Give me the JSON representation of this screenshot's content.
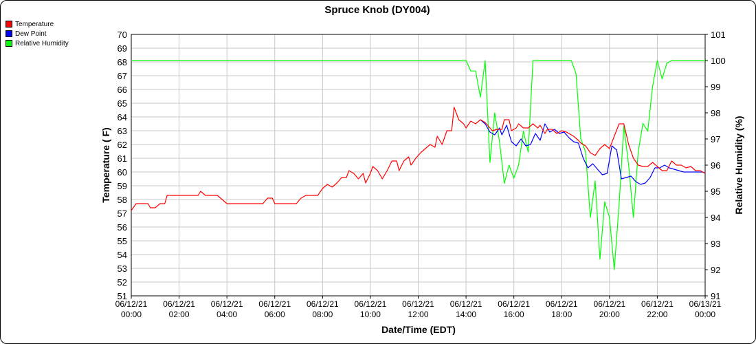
{
  "chart_data": {
    "type": "line",
    "title": "Spruce Knob (DY004)",
    "xlabel": "Date/Time (EDT)",
    "ylabel_left": "Temperature ( F)",
    "ylabel_right": "Relative Humidity (%)",
    "ylim_left": [
      51,
      70
    ],
    "ylim_right": [
      91,
      101
    ],
    "xlim_hours": [
      0,
      24
    ],
    "x_ticks": [
      {
        "h": 0,
        "date": "06/12/21",
        "time": "00:00"
      },
      {
        "h": 2,
        "date": "06/12/21",
        "time": "02:00"
      },
      {
        "h": 4,
        "date": "06/12/21",
        "time": "04:00"
      },
      {
        "h": 6,
        "date": "06/12/21",
        "time": "06:00"
      },
      {
        "h": 8,
        "date": "06/12/21",
        "time": "08:00"
      },
      {
        "h": 10,
        "date": "06/12/21",
        "time": "10:00"
      },
      {
        "h": 12,
        "date": "06/12/21",
        "time": "12:00"
      },
      {
        "h": 14,
        "date": "06/12/21",
        "time": "14:00"
      },
      {
        "h": 16,
        "date": "06/12/21",
        "time": "16:00"
      },
      {
        "h": 18,
        "date": "06/12/21",
        "time": "18:00"
      },
      {
        "h": 20,
        "date": "06/12/21",
        "time": "20:00"
      },
      {
        "h": 22,
        "date": "06/12/21",
        "time": "22:00"
      },
      {
        "h": 24,
        "date": "06/13/21",
        "time": "00:00"
      }
    ],
    "y_ticks_left": [
      51,
      52,
      53,
      54,
      55,
      56,
      57,
      58,
      59,
      60,
      61,
      62,
      63,
      64,
      65,
      66,
      67,
      68,
      69,
      70
    ],
    "y_ticks_right": [
      91,
      92,
      93,
      94,
      95,
      96,
      97,
      98,
      99,
      100,
      101
    ],
    "grid": true,
    "legend_position": "top-left",
    "series": [
      {
        "name": "Temperature",
        "color": "#ff0000",
        "axis": "left",
        "points": [
          [
            0,
            57.2
          ],
          [
            0.2,
            57.7
          ],
          [
            0.5,
            57.7
          ],
          [
            0.7,
            57.7
          ],
          [
            0.8,
            57.4
          ],
          [
            1.0,
            57.4
          ],
          [
            1.2,
            57.7
          ],
          [
            1.4,
            57.7
          ],
          [
            1.5,
            58.3
          ],
          [
            2.0,
            58.3
          ],
          [
            2.5,
            58.3
          ],
          [
            2.8,
            58.3
          ],
          [
            2.9,
            58.6
          ],
          [
            3.1,
            58.3
          ],
          [
            3.5,
            58.3
          ],
          [
            3.6,
            58.3
          ],
          [
            3.8,
            58.0
          ],
          [
            4.0,
            57.7
          ],
          [
            5.0,
            57.7
          ],
          [
            5.5,
            57.7
          ],
          [
            5.7,
            58.1
          ],
          [
            5.9,
            58.1
          ],
          [
            6.0,
            57.7
          ],
          [
            6.5,
            57.7
          ],
          [
            6.9,
            57.7
          ],
          [
            7.1,
            58.1
          ],
          [
            7.3,
            58.3
          ],
          [
            7.8,
            58.3
          ],
          [
            8.0,
            58.8
          ],
          [
            8.2,
            59.1
          ],
          [
            8.4,
            58.9
          ],
          [
            8.6,
            59.2
          ],
          [
            8.8,
            59.6
          ],
          [
            9.0,
            59.6
          ],
          [
            9.1,
            60.1
          ],
          [
            9.3,
            59.9
          ],
          [
            9.5,
            59.5
          ],
          [
            9.7,
            59.9
          ],
          [
            9.8,
            59.2
          ],
          [
            10.0,
            59.9
          ],
          [
            10.1,
            60.4
          ],
          [
            10.3,
            60.1
          ],
          [
            10.5,
            59.5
          ],
          [
            10.7,
            60.1
          ],
          [
            10.9,
            60.8
          ],
          [
            11.1,
            60.8
          ],
          [
            11.2,
            60.1
          ],
          [
            11.4,
            60.8
          ],
          [
            11.6,
            61.1
          ],
          [
            11.7,
            60.5
          ],
          [
            11.9,
            61.0
          ],
          [
            12.1,
            61.4
          ],
          [
            12.3,
            61.7
          ],
          [
            12.5,
            62.0
          ],
          [
            12.7,
            61.8
          ],
          [
            12.8,
            62.6
          ],
          [
            13.0,
            62.0
          ],
          [
            13.2,
            63.0
          ],
          [
            13.4,
            63.0
          ],
          [
            13.5,
            64.7
          ],
          [
            13.7,
            63.8
          ],
          [
            13.9,
            63.5
          ],
          [
            14.0,
            63.2
          ],
          [
            14.2,
            63.7
          ],
          [
            14.4,
            63.5
          ],
          [
            14.6,
            63.8
          ],
          [
            14.8,
            63.6
          ],
          [
            14.9,
            63.4
          ],
          [
            15.1,
            63.0
          ],
          [
            15.3,
            63.1
          ],
          [
            15.5,
            63.1
          ],
          [
            15.6,
            63.8
          ],
          [
            15.8,
            63.8
          ],
          [
            15.9,
            63.0
          ],
          [
            16.1,
            63.2
          ],
          [
            16.2,
            63.5
          ],
          [
            16.4,
            63.2
          ],
          [
            16.6,
            63.2
          ],
          [
            16.8,
            63.5
          ],
          [
            17.0,
            63.2
          ],
          [
            17.1,
            63.4
          ],
          [
            17.3,
            62.8
          ],
          [
            17.4,
            63.1
          ],
          [
            17.6,
            63.1
          ],
          [
            17.8,
            62.8
          ],
          [
            18.0,
            63.0
          ],
          [
            18.2,
            62.9
          ],
          [
            18.3,
            62.8
          ],
          [
            18.5,
            62.6
          ],
          [
            18.7,
            62.3
          ],
          [
            18.8,
            62.1
          ],
          [
            19.0,
            61.9
          ],
          [
            19.2,
            61.4
          ],
          [
            19.4,
            61.2
          ],
          [
            19.6,
            61.7
          ],
          [
            19.8,
            62.0
          ],
          [
            20.0,
            61.7
          ],
          [
            20.2,
            62.6
          ],
          [
            20.4,
            63.5
          ],
          [
            20.6,
            63.5
          ],
          [
            20.8,
            62.0
          ],
          [
            21.0,
            61.0
          ],
          [
            21.2,
            60.5
          ],
          [
            21.4,
            60.4
          ],
          [
            21.6,
            60.4
          ],
          [
            21.8,
            60.7
          ],
          [
            22.0,
            60.4
          ],
          [
            22.2,
            60.1
          ],
          [
            22.4,
            60.1
          ],
          [
            22.6,
            60.8
          ],
          [
            22.8,
            60.5
          ],
          [
            23.0,
            60.5
          ],
          [
            23.2,
            60.3
          ],
          [
            23.4,
            60.4
          ],
          [
            23.6,
            60.1
          ],
          [
            23.8,
            60.1
          ],
          [
            24.0,
            59.9
          ]
        ]
      },
      {
        "name": "Dew Point",
        "color": "#0000ff",
        "axis": "left",
        "points": [
          [
            14.6,
            63.8
          ],
          [
            14.8,
            63.5
          ],
          [
            15.0,
            62.9
          ],
          [
            15.2,
            62.7
          ],
          [
            15.4,
            63.2
          ],
          [
            15.5,
            62.7
          ],
          [
            15.7,
            63.4
          ],
          [
            15.9,
            62.2
          ],
          [
            16.1,
            61.9
          ],
          [
            16.3,
            62.4
          ],
          [
            16.5,
            61.9
          ],
          [
            16.7,
            62.0
          ],
          [
            16.9,
            62.8
          ],
          [
            17.1,
            62.3
          ],
          [
            17.3,
            63.5
          ],
          [
            17.5,
            62.9
          ],
          [
            17.7,
            63.1
          ],
          [
            17.9,
            62.8
          ],
          [
            18.1,
            62.9
          ],
          [
            18.3,
            62.5
          ],
          [
            18.5,
            62.2
          ],
          [
            18.7,
            62.1
          ],
          [
            18.9,
            61.0
          ],
          [
            19.1,
            60.3
          ],
          [
            19.3,
            60.6
          ],
          [
            19.5,
            60.2
          ],
          [
            19.7,
            59.8
          ],
          [
            19.9,
            59.9
          ],
          [
            20.1,
            61.9
          ],
          [
            20.3,
            61.6
          ],
          [
            20.5,
            59.5
          ],
          [
            20.7,
            59.6
          ],
          [
            20.9,
            59.7
          ],
          [
            21.1,
            59.3
          ],
          [
            21.3,
            59.1
          ],
          [
            21.5,
            59.2
          ],
          [
            21.7,
            59.6
          ],
          [
            21.9,
            60.3
          ],
          [
            22.1,
            60.3
          ],
          [
            22.3,
            60.5
          ],
          [
            22.5,
            60.3
          ],
          [
            22.7,
            60.2
          ],
          [
            22.9,
            60.1
          ],
          [
            23.1,
            60.0
          ],
          [
            23.3,
            60.0
          ],
          [
            23.5,
            60.0
          ],
          [
            23.7,
            60.0
          ],
          [
            23.9,
            60.0
          ],
          [
            24.0,
            59.9
          ]
        ]
      },
      {
        "name": "Relative Humidity",
        "color": "#00ff00",
        "axis": "right",
        "points": [
          [
            0,
            100
          ],
          [
            14.0,
            100
          ],
          [
            14.2,
            99.6
          ],
          [
            14.4,
            99.6
          ],
          [
            14.6,
            98.6
          ],
          [
            14.8,
            100
          ],
          [
            15.0,
            96.1
          ],
          [
            15.2,
            98.0
          ],
          [
            15.4,
            96.9
          ],
          [
            15.6,
            95.3
          ],
          [
            15.8,
            96.0
          ],
          [
            16.0,
            95.5
          ],
          [
            16.2,
            96.0
          ],
          [
            16.4,
            97.3
          ],
          [
            16.6,
            96.5
          ],
          [
            16.8,
            100
          ],
          [
            17.0,
            100
          ],
          [
            17.2,
            100
          ],
          [
            17.4,
            100
          ],
          [
            17.6,
            100
          ],
          [
            17.8,
            100
          ],
          [
            18.0,
            100
          ],
          [
            18.2,
            100
          ],
          [
            18.4,
            100
          ],
          [
            18.6,
            99.5
          ],
          [
            18.8,
            97.0
          ],
          [
            19.0,
            96.5
          ],
          [
            19.2,
            94.0
          ],
          [
            19.4,
            95.4
          ],
          [
            19.6,
            92.4
          ],
          [
            19.8,
            94.6
          ],
          [
            20.0,
            94.0
          ],
          [
            20.2,
            92.0
          ],
          [
            20.4,
            94.5
          ],
          [
            20.6,
            97.5
          ],
          [
            20.8,
            96.0
          ],
          [
            21.0,
            94.0
          ],
          [
            21.2,
            96.5
          ],
          [
            21.4,
            97.6
          ],
          [
            21.6,
            97.3
          ],
          [
            21.8,
            99.0
          ],
          [
            22.0,
            100
          ],
          [
            22.2,
            99.3
          ],
          [
            22.4,
            99.9
          ],
          [
            22.6,
            100
          ],
          [
            23.0,
            100
          ],
          [
            23.5,
            100
          ],
          [
            24.0,
            100
          ]
        ]
      }
    ]
  }
}
